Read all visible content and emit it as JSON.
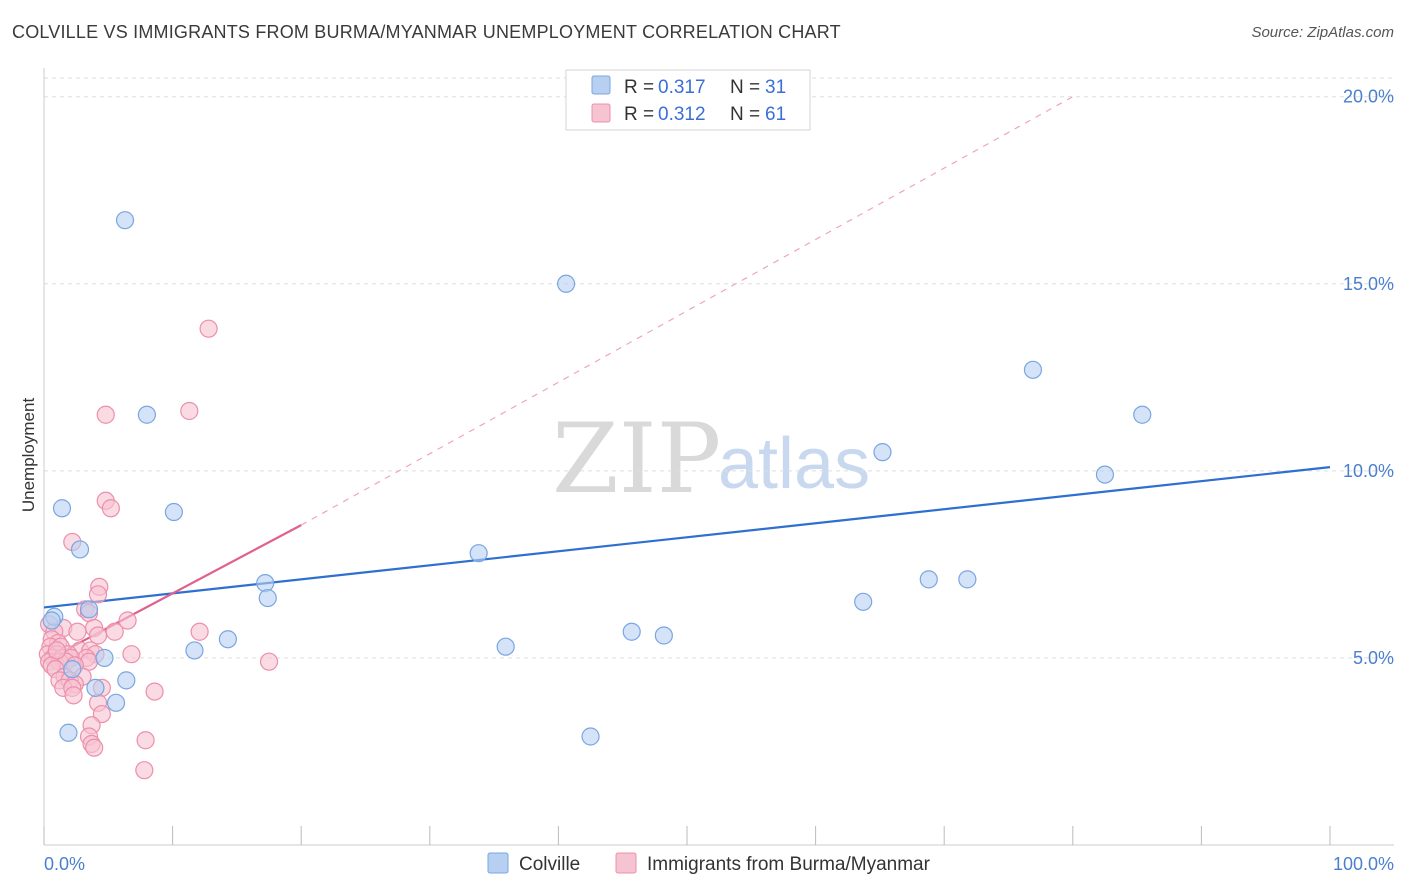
{
  "title": "COLVILLE VS IMMIGRANTS FROM BURMA/MYANMAR UNEMPLOYMENT CORRELATION CHART",
  "source": "Source: ZipAtlas.com",
  "watermark": {
    "zip": "ZIP",
    "atlas": "atlas"
  },
  "colors": {
    "blue_fill": "#b7d0f2",
    "blue_stroke": "#7aa6e0",
    "blue_line": "#2e6fd0",
    "pink_fill": "#f6c3d2",
    "pink_stroke": "#ec8fab",
    "pink_line": "#e0608e",
    "grid": "#dddddd",
    "axis_text": "#4a7fd0"
  },
  "legend": {
    "rows": [
      {
        "r_label": "R = ",
        "r_value": "0.317",
        "n_label": "N = ",
        "n_value": "31"
      },
      {
        "r_label": "R = ",
        "r_value": "0.312",
        "n_label": "N = ",
        "n_value": "61"
      }
    ]
  },
  "chart_data": {
    "type": "scatter",
    "xlabel": "",
    "ylabel": "Unemployment",
    "xlim": [
      0,
      100
    ],
    "ylim": [
      0,
      20.5
    ],
    "x_tick_labels": [
      "0.0%",
      "100.0%"
    ],
    "y_ticks": [
      5,
      10,
      15,
      20
    ],
    "y_tick_labels": [
      "5.0%",
      "10.0%",
      "15.0%",
      "20.0%"
    ],
    "series": [
      {
        "name": "Colville",
        "color": "blue",
        "points": [
          [
            6.3,
            16.7
          ],
          [
            40.6,
            15.0
          ],
          [
            76.9,
            12.7
          ],
          [
            85.4,
            11.5
          ],
          [
            8.0,
            11.5
          ],
          [
            65.2,
            10.5
          ],
          [
            82.5,
            9.9
          ],
          [
            1.4,
            9.0
          ],
          [
            10.1,
            8.9
          ],
          [
            2.8,
            7.9
          ],
          [
            33.8,
            7.8
          ],
          [
            17.2,
            7.0
          ],
          [
            68.8,
            7.1
          ],
          [
            71.8,
            7.1
          ],
          [
            17.4,
            6.6
          ],
          [
            63.7,
            6.5
          ],
          [
            3.5,
            6.3
          ],
          [
            0.8,
            6.1
          ],
          [
            0.6,
            6.0
          ],
          [
            45.7,
            5.7
          ],
          [
            48.2,
            5.6
          ],
          [
            14.3,
            5.5
          ],
          [
            35.9,
            5.3
          ],
          [
            11.7,
            5.2
          ],
          [
            4.7,
            5.0
          ],
          [
            2.2,
            4.7
          ],
          [
            6.4,
            4.4
          ],
          [
            4.0,
            4.2
          ],
          [
            5.6,
            3.8
          ],
          [
            42.5,
            2.9
          ],
          [
            1.9,
            3.0
          ]
        ],
        "trend": {
          "x": [
            0,
            100
          ],
          "y": [
            6.35,
            10.1
          ],
          "dashed": false
        }
      },
      {
        "name": "Immigrants from Burma/Myanmar",
        "color": "pink",
        "points": [
          [
            12.8,
            13.8
          ],
          [
            11.3,
            11.6
          ],
          [
            4.8,
            11.5
          ],
          [
            4.8,
            9.2
          ],
          [
            5.2,
            9.0
          ],
          [
            2.2,
            8.1
          ],
          [
            4.3,
            6.9
          ],
          [
            4.2,
            6.7
          ],
          [
            3.2,
            6.3
          ],
          [
            3.5,
            6.2
          ],
          [
            6.5,
            6.0
          ],
          [
            0.4,
            5.9
          ],
          [
            1.5,
            5.8
          ],
          [
            3.9,
            5.8
          ],
          [
            0.8,
            5.7
          ],
          [
            2.6,
            5.7
          ],
          [
            5.5,
            5.7
          ],
          [
            12.1,
            5.7
          ],
          [
            4.2,
            5.6
          ],
          [
            0.6,
            5.5
          ],
          [
            1.1,
            5.4
          ],
          [
            0.5,
            5.3
          ],
          [
            1.3,
            5.3
          ],
          [
            2.8,
            5.2
          ],
          [
            3.6,
            5.2
          ],
          [
            0.3,
            5.1
          ],
          [
            1.0,
            5.1
          ],
          [
            1.9,
            5.1
          ],
          [
            4.0,
            5.1
          ],
          [
            6.8,
            5.1
          ],
          [
            0.7,
            5.0
          ],
          [
            1.4,
            5.0
          ],
          [
            2.1,
            5.0
          ],
          [
            3.3,
            5.0
          ],
          [
            0.4,
            4.9
          ],
          [
            1.2,
            4.9
          ],
          [
            1.7,
            4.9
          ],
          [
            3.5,
            4.9
          ],
          [
            17.5,
            4.9
          ],
          [
            0.6,
            4.8
          ],
          [
            2.4,
            4.8
          ],
          [
            0.9,
            4.7
          ],
          [
            1.6,
            4.5
          ],
          [
            3.0,
            4.5
          ],
          [
            1.2,
            4.4
          ],
          [
            2.0,
            4.4
          ],
          [
            2.4,
            4.3
          ],
          [
            1.5,
            4.2
          ],
          [
            2.2,
            4.2
          ],
          [
            4.5,
            4.2
          ],
          [
            8.6,
            4.1
          ],
          [
            2.3,
            4.0
          ],
          [
            4.2,
            3.8
          ],
          [
            4.5,
            3.5
          ],
          [
            3.7,
            3.2
          ],
          [
            3.5,
            2.9
          ],
          [
            3.7,
            2.7
          ],
          [
            7.9,
            2.8
          ],
          [
            3.9,
            2.6
          ],
          [
            7.8,
            2.0
          ],
          [
            1.0,
            5.2
          ]
        ],
        "trend": {
          "x": [
            0,
            20
          ],
          "y": [
            4.9,
            8.55
          ],
          "dashed": false
        },
        "trend_extension": {
          "x": [
            20,
            80
          ],
          "y": [
            8.55,
            20.0
          ],
          "dashed": true
        }
      }
    ],
    "legend_position": "top-center",
    "bottom_legend": [
      "Colville",
      "Immigrants from Burma/Myanmar"
    ]
  }
}
